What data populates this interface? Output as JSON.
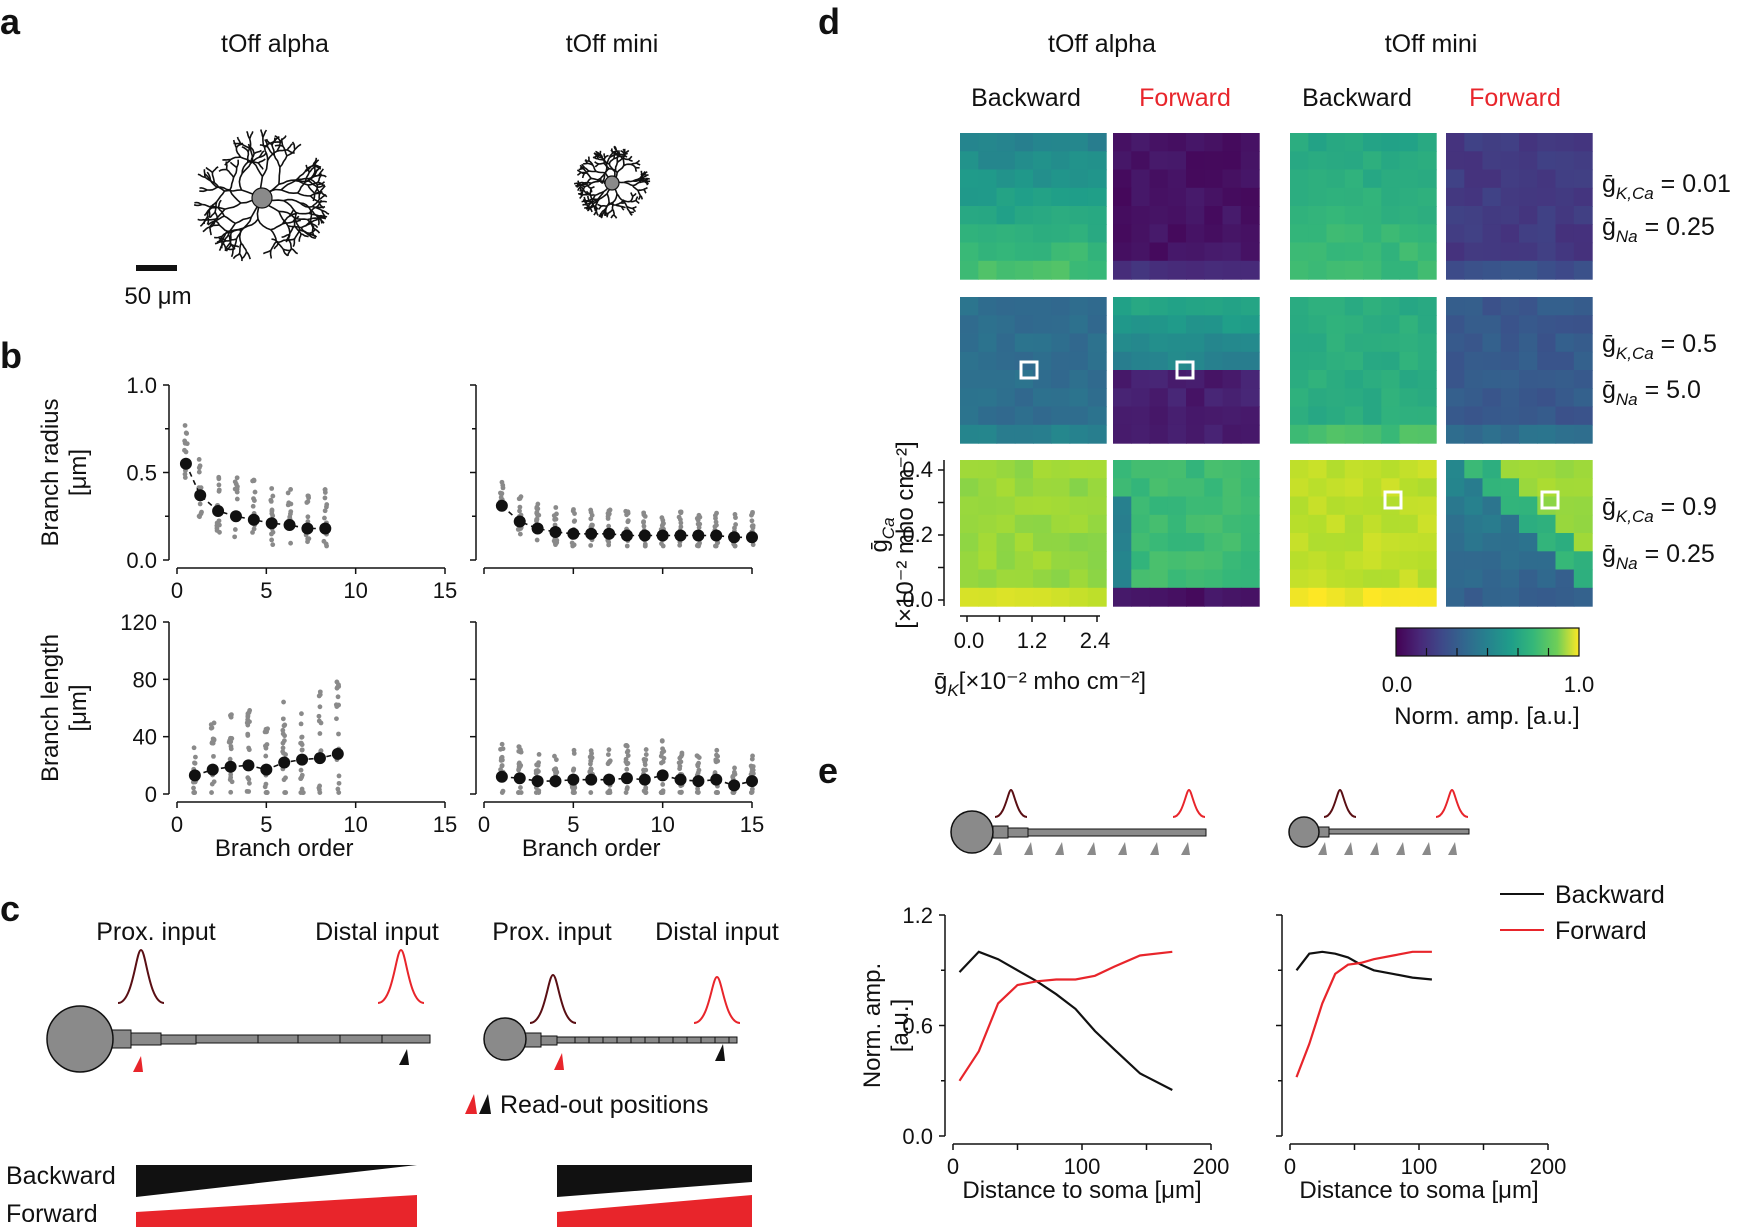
{
  "colors": {
    "red": "#e8252b",
    "black": "#111111",
    "gray": "#8a8a8a",
    "dark_red": "#5a0f14"
  },
  "panel_a": {
    "letter": "a",
    "cells": [
      "tOff alpha",
      "tOff mini"
    ],
    "scalebar_label": "50 μm"
  },
  "panel_b": {
    "letter": "b"
  },
  "panel_c": {
    "letter": "c",
    "prox_label": "Prox. input",
    "distal_label": "Distal input",
    "readout_label": "Read-out positions",
    "backward_label": "Backward",
    "forward_label": "Forward"
  },
  "panel_d": {
    "letter": "d",
    "cells": [
      "tOff alpha",
      "tOff mini"
    ],
    "backward_label": "Backward",
    "forward_label": "Forward",
    "row_params": [
      {
        "kca": "0.01",
        "na": "0.25"
      },
      {
        "kca": "0.5",
        "na": "5.0"
      },
      {
        "kca": "0.9",
        "na": "0.25"
      }
    ],
    "gK_sym": "ḡ",
    "gK_sub": "K",
    "gK_units": "[×10⁻² mho cm⁻²]",
    "gCa_sym": "ḡ",
    "gCa_sub": "Ca",
    "gCa_units": "[×10⁻² mho cm⁻²]",
    "kca_sub": "K,Ca",
    "na_sub": "Na",
    "colorbar_label": "Norm. amp. [a.u.]",
    "colorbar_ticks": [
      "0.0",
      "1.0"
    ]
  },
  "panel_e": {
    "letter": "e",
    "legend": [
      "Backward",
      "Forward"
    ]
  },
  "chart_data": [
    {
      "id": "b_radius_alpha",
      "type": "scatter",
      "title": "",
      "xlabel": "",
      "ylabel": "Branch radius [μm]",
      "xlim": [
        0,
        15
      ],
      "ylim": [
        0,
        1.0
      ],
      "xticks": [
        "0",
        "5",
        "10",
        "15"
      ],
      "yticks": [
        "0.0",
        "0.5",
        "1.0"
      ],
      "series": [
        {
          "name": "mean",
          "x": [
            0.5,
            1.3,
            2.3,
            3.3,
            4.3,
            5.3,
            6.3,
            7.3,
            8.3
          ],
          "y": [
            0.55,
            0.37,
            0.28,
            0.25,
            0.23,
            0.21,
            0.2,
            0.18,
            0.18
          ]
        }
      ]
    },
    {
      "id": "b_radius_mini",
      "type": "scatter",
      "xlim": [
        0,
        15
      ],
      "ylim": [
        0,
        1.0
      ],
      "xticks": [],
      "yticks": [],
      "series": [
        {
          "name": "mean",
          "x": [
            1,
            2,
            3,
            4,
            5,
            6,
            7,
            8,
            9,
            10,
            11,
            12,
            13,
            14,
            15
          ],
          "y": [
            0.31,
            0.22,
            0.18,
            0.16,
            0.15,
            0.15,
            0.15,
            0.14,
            0.14,
            0.14,
            0.14,
            0.14,
            0.14,
            0.13,
            0.13
          ]
        }
      ]
    },
    {
      "id": "b_length_alpha",
      "type": "scatter",
      "xlabel": "Branch order",
      "ylabel": "Branch length [μm]",
      "xlim": [
        0,
        15
      ],
      "ylim": [
        0,
        120
      ],
      "xticks": [
        "0",
        "5",
        "10",
        "15"
      ],
      "yticks": [
        "0",
        "40",
        "80",
        "120"
      ],
      "series": [
        {
          "name": "mean",
          "x": [
            1,
            2,
            3,
            4,
            5,
            6,
            7,
            8,
            9
          ],
          "y": [
            13,
            17,
            19,
            20,
            17,
            22,
            24,
            25,
            28
          ]
        }
      ]
    },
    {
      "id": "b_length_mini",
      "type": "scatter",
      "xlabel": "Branch order",
      "xlim": [
        0,
        15
      ],
      "ylim": [
        0,
        120
      ],
      "xticks": [
        "0",
        "5",
        "10",
        "15"
      ],
      "yticks": [],
      "series": [
        {
          "name": "mean",
          "x": [
            1,
            2,
            3,
            4,
            5,
            6,
            7,
            8,
            9,
            10,
            11,
            12,
            13,
            14,
            15
          ],
          "y": [
            12,
            11,
            9,
            9,
            10,
            10,
            10,
            11,
            10,
            13,
            10,
            9,
            10,
            6,
            9
          ]
        }
      ]
    },
    {
      "id": "e_alpha",
      "type": "line",
      "xlabel": "Distance to soma [μm]",
      "ylabel": "Norm. amp. [a.u.]",
      "xlim": [
        0,
        200
      ],
      "ylim": [
        0,
        1.2
      ],
      "xticks": [
        "0",
        "100",
        "200"
      ],
      "yticks": [
        "0.0",
        "0.6",
        "1.2"
      ],
      "series": [
        {
          "name": "Backward",
          "x": [
            5,
            20,
            35,
            50,
            65,
            80,
            95,
            110,
            125,
            145,
            170
          ],
          "y": [
            0.89,
            1.0,
            0.96,
            0.9,
            0.84,
            0.77,
            0.69,
            0.57,
            0.47,
            0.34,
            0.25
          ]
        },
        {
          "name": "Forward",
          "x": [
            5,
            20,
            35,
            50,
            65,
            80,
            95,
            110,
            125,
            145,
            170
          ],
          "y": [
            0.3,
            0.46,
            0.72,
            0.82,
            0.84,
            0.85,
            0.85,
            0.87,
            0.92,
            0.98,
            1.0
          ]
        }
      ]
    },
    {
      "id": "e_mini",
      "type": "line",
      "xlabel": "Distance to soma [μm]",
      "xlim": [
        0,
        200
      ],
      "ylim": [
        0,
        1.2
      ],
      "xticks": [
        "0",
        "100",
        "200"
      ],
      "yticks": [],
      "series": [
        {
          "name": "Backward",
          "x": [
            5,
            15,
            25,
            35,
            45,
            55,
            65,
            80,
            95,
            110
          ],
          "y": [
            0.9,
            0.99,
            1.0,
            0.99,
            0.97,
            0.93,
            0.9,
            0.88,
            0.86,
            0.85
          ]
        },
        {
          "name": "Forward",
          "x": [
            5,
            15,
            25,
            35,
            45,
            55,
            65,
            80,
            95,
            110
          ],
          "y": [
            0.32,
            0.5,
            0.72,
            0.88,
            0.93,
            0.94,
            0.96,
            0.98,
            1.0,
            1.0
          ]
        }
      ]
    },
    {
      "id": "d_heatmaps",
      "type": "heatmap",
      "xlabel": "ḡK [×10⁻² mho cm⁻²]",
      "ylabel": "ḡCa [×10⁻² mho cm⁻²]",
      "xticks": [
        "0.0",
        "1.2",
        "2.4"
      ],
      "yticks": [
        "0.0",
        "0.2",
        "0.4"
      ],
      "grid_size": 8,
      "panels": [
        {
          "row": 0,
          "col": 0,
          "kind": "gradient",
          "top": 0.45,
          "bottom": 0.7
        },
        {
          "row": 0,
          "col": 1,
          "kind": "flat",
          "base": 0.05
        },
        {
          "row": 0,
          "col": 2,
          "kind": "gradient",
          "top": 0.6,
          "bottom": 0.68
        },
        {
          "row": 0,
          "col": 3,
          "kind": "flat",
          "base": 0.17
        },
        {
          "row": 1,
          "col": 0,
          "kind": "flat",
          "base": 0.36
        },
        {
          "row": 1,
          "col": 1,
          "kind": "split",
          "top": 0.45,
          "bottom": 0.08
        },
        {
          "row": 1,
          "col": 2,
          "kind": "flat",
          "base": 0.62
        },
        {
          "row": 1,
          "col": 3,
          "kind": "flat",
          "base": 0.28
        },
        {
          "row": 2,
          "col": 0,
          "kind": "flat",
          "base": 0.84
        },
        {
          "row": 2,
          "col": 1,
          "kind": "corner",
          "base": 0.68
        },
        {
          "row": 2,
          "col": 2,
          "kind": "flat",
          "base": 0.9
        },
        {
          "row": 2,
          "col": 3,
          "kind": "diag",
          "base": 0.45
        }
      ]
    }
  ]
}
